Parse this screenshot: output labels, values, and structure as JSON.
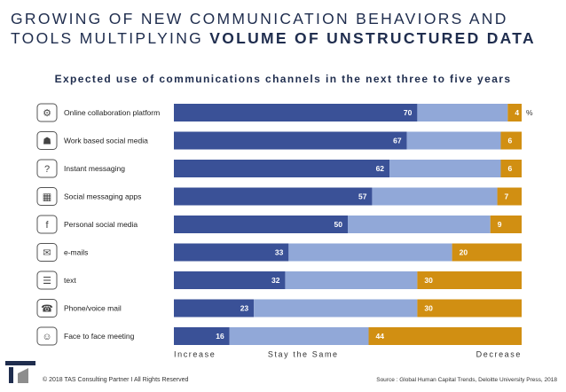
{
  "header": {
    "title_line1": "GROWING OF NEW COMMUNICATION BEHAVIORS AND",
    "title_line2_plain": "TOOLS MULTIPLYING ",
    "title_line2_bold": "VOLUME OF UNSTRUCTURED DATA"
  },
  "chart_data": {
    "type": "bar",
    "orientation": "horizontal",
    "stacked": true,
    "title": "Expected use of communications channels in the next three to five years",
    "unit": "%",
    "categories": [
      "Online collaboration platform",
      "Work based social media",
      "Instant messaging",
      "Social messaging apps",
      "Personal social media",
      "e-mails",
      "text",
      "Phone/voice mail",
      "Face to face meeting"
    ],
    "icons": [
      "network-icon",
      "people-network-icon",
      "chat-bubble-icon",
      "phone-apps-icon",
      "social-media-icon",
      "envelope-icon",
      "text-bubble-icon",
      "phone-icon",
      "meeting-icon"
    ],
    "series": [
      {
        "name": "Increase",
        "color": "#3a5197",
        "values": [
          70,
          67,
          62,
          57,
          50,
          33,
          32,
          23,
          16
        ]
      },
      {
        "name": "Stay the Same",
        "color": "#91a8d8",
        "values": [
          26,
          27,
          32,
          36,
          41,
          47,
          38,
          47,
          40
        ]
      },
      {
        "name": "Decrease",
        "color": "#d18f12",
        "values": [
          4,
          6,
          6,
          7,
          9,
          20,
          30,
          30,
          44
        ]
      }
    ],
    "xlim": [
      0,
      100
    ],
    "legend_position": "bottom",
    "grid": false
  },
  "footer": {
    "copyright": "© 2018 TAS Consulting Partner  I  All Rights Reserved",
    "source": "Source : Global Human Capital Trends, Deloitte University Press, 2018"
  }
}
